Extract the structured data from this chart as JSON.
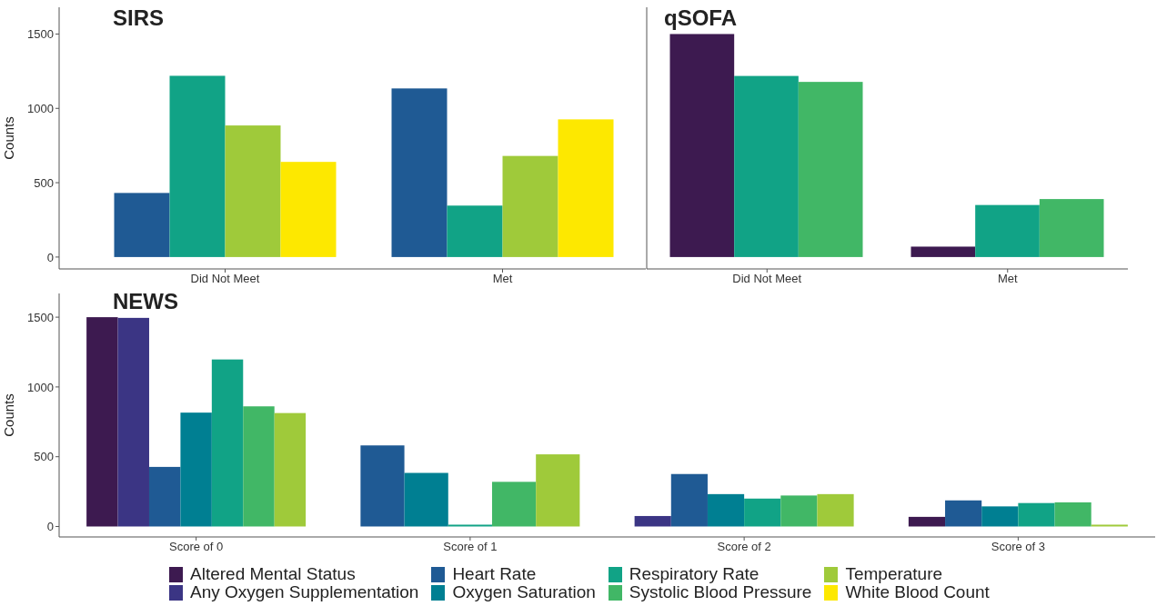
{
  "chart_data": [
    {
      "type": "bar",
      "title": "SIRS",
      "ylabel": "Counts",
      "categories": [
        "Did Not Meet",
        "Met"
      ],
      "ylim": [
        -80,
        1680
      ],
      "yticks": [
        0,
        500,
        1000,
        1500
      ],
      "legend": "bottom",
      "series": [
        {
          "name": "Heart Rate",
          "color": "#1f5a94",
          "values": [
            431,
            1134
          ]
        },
        {
          "name": "Respiratory Rate",
          "color": "#11a386",
          "values": [
            1219,
            346
          ]
        },
        {
          "name": "Temperature",
          "color": "#9fca3a",
          "values": [
            885,
            680
          ]
        },
        {
          "name": "White Blood Count",
          "color": "#fde800",
          "values": [
            640,
            926
          ]
        }
      ]
    },
    {
      "type": "bar",
      "title": "qSOFA",
      "categories": [
        "Did Not Meet",
        "Met"
      ],
      "ylim": [
        -80,
        1680
      ],
      "yticks": [
        0,
        500,
        1000,
        1500
      ],
      "tick_labels": "x",
      "legend": "bottom",
      "series": [
        {
          "name": "Altered Mental Status",
          "color": "#3d1a50",
          "values": [
            1500,
            70
          ]
        },
        {
          "name": "Respiratory Rate",
          "color": "#11a386",
          "values": [
            1218,
            350
          ]
        },
        {
          "name": "Systolic Blood Pressure",
          "color": "#41b766",
          "values": [
            1178,
            390
          ]
        }
      ]
    },
    {
      "type": "bar",
      "title": "NEWS",
      "ylabel": "Counts",
      "categories": [
        "Score of 0",
        "Score of 1",
        "Score of 2",
        "Score of 3"
      ],
      "ylim": [
        -75,
        1670
      ],
      "yticks": [
        0,
        500,
        1000,
        1500
      ],
      "legend": "bottom",
      "series": [
        {
          "name": "Altered Mental Status",
          "color": "#3d1a50",
          "values": [
            1500,
            null,
            null,
            69
          ]
        },
        {
          "name": "Any Oxygen Supplementation",
          "color": "#3b3584",
          "values": [
            1495,
            null,
            75,
            null
          ]
        },
        {
          "name": "Heart Rate",
          "color": "#1f5a94",
          "values": [
            427,
            581,
            376,
            187
          ]
        },
        {
          "name": "Oxygen Saturation",
          "color": "#007f92",
          "values": [
            816,
            384,
            232,
            144
          ]
        },
        {
          "name": "Respiratory Rate",
          "color": "#11a386",
          "values": [
            1197,
            13,
            200,
            168
          ]
        },
        {
          "name": "Systolic Blood Pressure",
          "color": "#41b766",
          "values": [
            861,
            320,
            222,
            173
          ]
        },
        {
          "name": "Temperature",
          "color": "#9fca3a",
          "values": [
            813,
            517,
            232,
            13
          ]
        }
      ]
    }
  ]
}
